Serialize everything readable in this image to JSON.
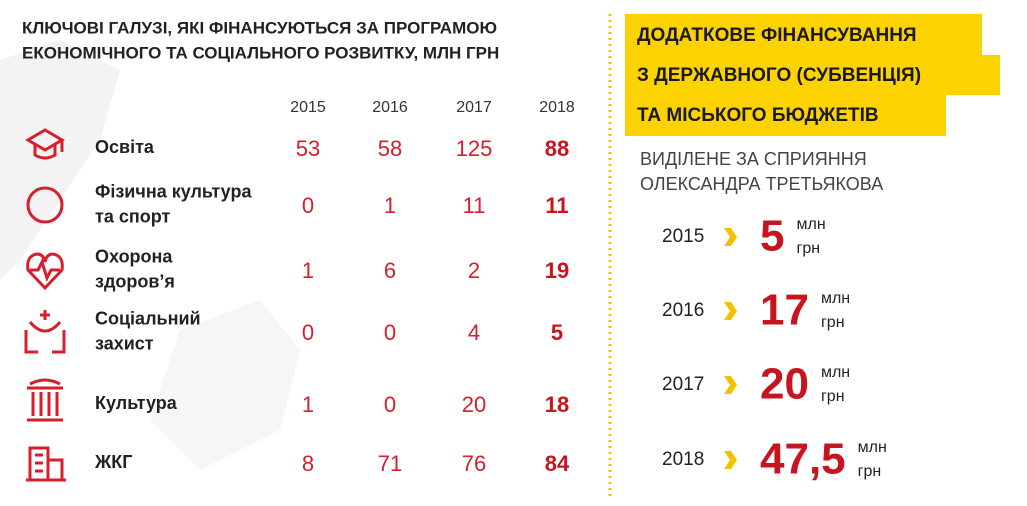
{
  "left": {
    "title": [
      "КЛЮЧОВІ ГАЛУЗІ, ЯКІ ФІНАНСУЮТЬСЯ ЗА ПРОГРАМОЮ",
      "ЕКОНОМІЧНОГО ТА СОЦІАЛЬНОГО РОЗВИТКУ, МЛН ГРН"
    ],
    "table": {
      "header": [
        2015,
        2016,
        2017,
        2018
      ],
      "rows": [
        {
          "label": [
            "Освіта"
          ],
          "values": [
            53,
            58,
            125,
            88
          ]
        },
        {
          "label": [
            "Фізична культура",
            "та спорт"
          ],
          "values": [
            0,
            1,
            11,
            11
          ]
        },
        {
          "label": [
            "Охорона",
            "здоров’я"
          ],
          "values": [
            1,
            6,
            2,
            19
          ]
        },
        {
          "label": [
            "Соціальний",
            "захист"
          ],
          "values": [
            0,
            0,
            4,
            5
          ]
        },
        {
          "label": [
            "Культура"
          ],
          "values": [
            1,
            0,
            20,
            18
          ]
        },
        {
          "label": [
            "ЖКГ"
          ],
          "values": [
            8,
            71,
            76,
            84
          ]
        }
      ]
    }
  },
  "right": {
    "title": [
      "ДОДАТКОВЕ ФІНАНСУВАННЯ",
      "З ДЕРЖАВНОГО (СУБВЕНЦІЯ)",
      "ТА МІСЬКОГО БЮДЖЕТІВ"
    ],
    "subtitle": [
      "ВИДІЛЕНЕ ЗА СПРИЯННЯ",
      "ОЛЕКСАНДРА ТРЕТЬЯКОВА"
    ],
    "items": [
      {
        "year": 2015,
        "value": "5",
        "unit": [
          "млн",
          "грн"
        ]
      },
      {
        "year": 2016,
        "value": "17",
        "unit": [
          "млн",
          "грн"
        ]
      },
      {
        "year": 2017,
        "value": "20",
        "unit": [
          "млн",
          "грн"
        ]
      },
      {
        "year": 2018,
        "value": "47,5",
        "unit": [
          "млн",
          "грн"
        ]
      }
    ]
  }
}
